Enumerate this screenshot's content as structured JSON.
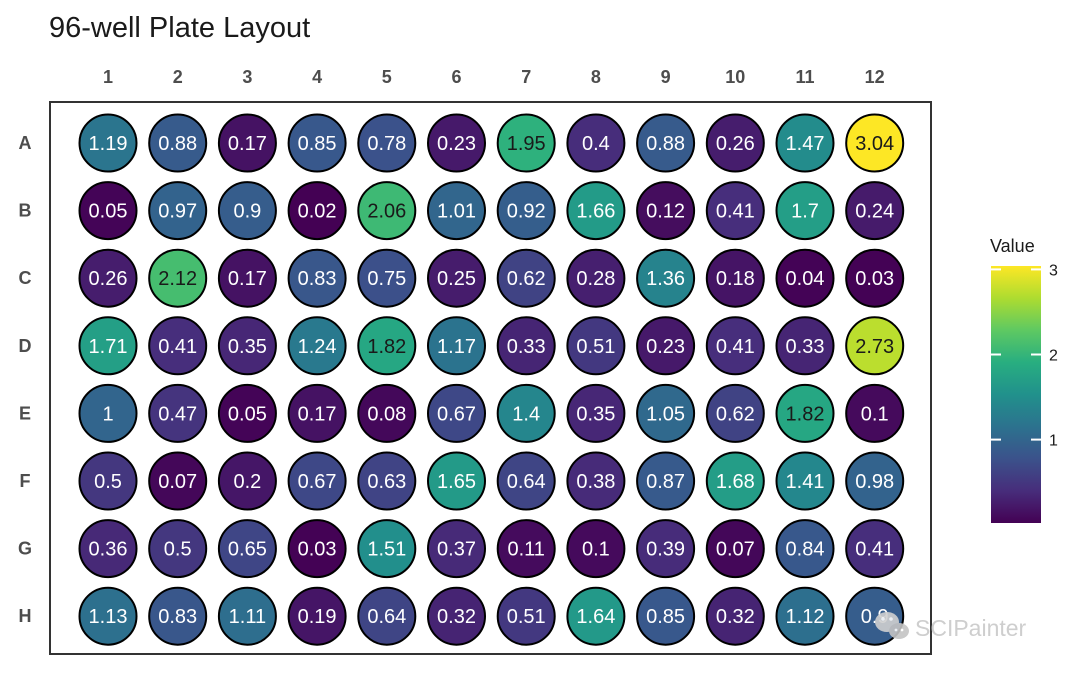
{
  "chart_data": {
    "type": "heatmap",
    "title": "96-well Plate Layout",
    "rows": [
      "A",
      "B",
      "C",
      "D",
      "E",
      "F",
      "G",
      "H"
    ],
    "columns": [
      "1",
      "2",
      "3",
      "4",
      "5",
      "6",
      "7",
      "8",
      "9",
      "10",
      "11",
      "12"
    ],
    "values": [
      [
        "1.19",
        "0.88",
        "0.17",
        "0.85",
        "0.78",
        "0.23",
        "1.95",
        "0.4",
        "0.88",
        "0.26",
        "1.47",
        "3.04"
      ],
      [
        "0.05",
        "0.97",
        "0.9",
        "0.02",
        "2.06",
        "1.01",
        "0.92",
        "1.66",
        "0.12",
        "0.41",
        "1.7",
        "0.24"
      ],
      [
        "0.26",
        "2.12",
        "0.17",
        "0.83",
        "0.75",
        "0.25",
        "0.62",
        "0.28",
        "1.36",
        "0.18",
        "0.04",
        "0.03"
      ],
      [
        "1.71",
        "0.41",
        "0.35",
        "1.24",
        "1.82",
        "1.17",
        "0.33",
        "0.51",
        "0.23",
        "0.41",
        "0.33",
        "2.73"
      ],
      [
        "1",
        "0.47",
        "0.05",
        "0.17",
        "0.08",
        "0.67",
        "1.4",
        "0.35",
        "1.05",
        "0.62",
        "1.82",
        "0.1"
      ],
      [
        "0.5",
        "0.07",
        "0.2",
        "0.67",
        "0.63",
        "1.65",
        "0.64",
        "0.38",
        "0.87",
        "1.68",
        "1.41",
        "0.98"
      ],
      [
        "0.36",
        "0.5",
        "0.65",
        "0.03",
        "1.51",
        "0.37",
        "0.11",
        "0.1",
        "0.39",
        "0.07",
        "0.84",
        "0.41"
      ],
      [
        "1.13",
        "0.83",
        "1.11",
        "0.19",
        "0.64",
        "0.32",
        "0.51",
        "1.64",
        "0.85",
        "0.32",
        "1.12",
        "0.9"
      ]
    ],
    "color_scale": {
      "name": "viridis",
      "domain": [
        0.02,
        3.04
      ],
      "low_color": "#440154",
      "high_color": "#fde725"
    },
    "legend": {
      "title": "Value",
      "ticks": [
        "1",
        "2",
        "3"
      ],
      "placement": "right"
    },
    "grid": false
  },
  "watermark": {
    "text": "SCIPainter",
    "icon": "wechat-icon"
  }
}
